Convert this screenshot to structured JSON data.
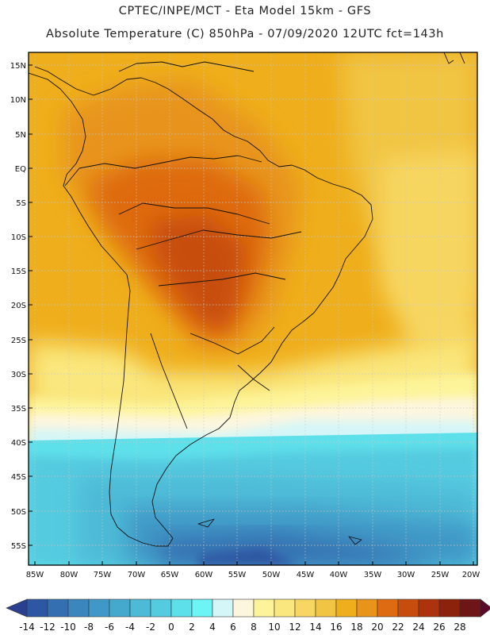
{
  "header": {
    "line1": "CPTEC/INPE/MCT -   Eta Model 15km - GFS",
    "line2": "Absolute Temperature (C) 850hPa - 07/09/2020 12UTC fct=143h"
  },
  "map": {
    "lat_labels": [
      "15N",
      "10N",
      "5N",
      "EQ",
      "5S",
      "10S",
      "15S",
      "20S",
      "25S",
      "30S",
      "35S",
      "40S",
      "45S",
      "50S",
      "55S"
    ],
    "lon_labels": [
      "85W",
      "80W",
      "75W",
      "70W",
      "65W",
      "60W",
      "55W",
      "50W",
      "45W",
      "40W",
      "35W",
      "30W",
      "25W",
      "20W"
    ]
  },
  "colorbar": {
    "labels": [
      "-14",
      "-12",
      "-10",
      "-8",
      "-6",
      "-4",
      "-2",
      "0",
      "2",
      "4",
      "6",
      "8",
      "10",
      "12",
      "14",
      "16",
      "18",
      "20",
      "22",
      "24",
      "26",
      "28"
    ],
    "colors": [
      "#2a3f8f",
      "#2e57a3",
      "#3470b1",
      "#3a86bd",
      "#3f98c6",
      "#45a9ce",
      "#4dbad7",
      "#55cbe0",
      "#5ee0ea",
      "#6df5f5",
      "#d4f6f8",
      "#fdf6df",
      "#fdf49a",
      "#fae77d",
      "#f7d661",
      "#f1c443",
      "#efae1b",
      "#e8941b",
      "#de6a11",
      "#c74d0f",
      "#ac330c",
      "#8c220c",
      "#6e1515",
      "#5a0b2b"
    ]
  }
}
